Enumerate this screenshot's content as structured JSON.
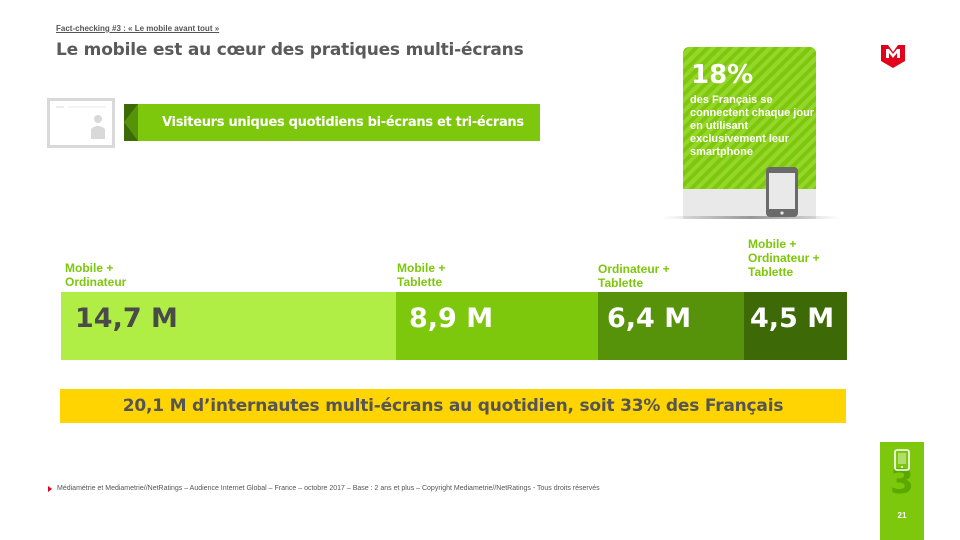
{
  "header": {
    "breadcrumb": "Fact-checking #3 : « Le mobile avant tout »",
    "title": "Le mobile est au cœur des pratiques multi-écrans"
  },
  "banner": {
    "label": "Visiteurs uniques quotidiens bi-écrans et tri-écrans",
    "accent": "#7dc70c"
  },
  "callout": {
    "percent": "18%",
    "text": "des Français se connectent chaque jour en utilisant exclusivement leur smartphone"
  },
  "segments": [
    {
      "label": "Mobile + Ordinateur",
      "value": "14,7 M",
      "color": "#b0ee45"
    },
    {
      "label": "Mobile + Tablette",
      "value": "8,9 M",
      "color": "#7dc70c"
    },
    {
      "label": "Ordinateur + Tablette",
      "value": "6,4 M",
      "color": "#57930a"
    },
    {
      "label": "Mobile + Ordinateur + Tablette",
      "value": "4,5 M",
      "color": "#3d6a06"
    }
  ],
  "summary": "20,1 M d’internautes multi-écrans au quotidien, soit 33% des Français",
  "footnote": "Médiamétrie et Mediametrie//NetRatings – Audience Internet Global – France – octobre 2017 – Base : 2 ans et plus – Copyright Mediametrie//NetRatings - Tous droits réservés",
  "chapter": {
    "number": "3",
    "icon": "smartphone-icon"
  },
  "page_number": "21",
  "brand": {
    "logo": "mediametrie-logo",
    "color": "#e2001a"
  }
}
